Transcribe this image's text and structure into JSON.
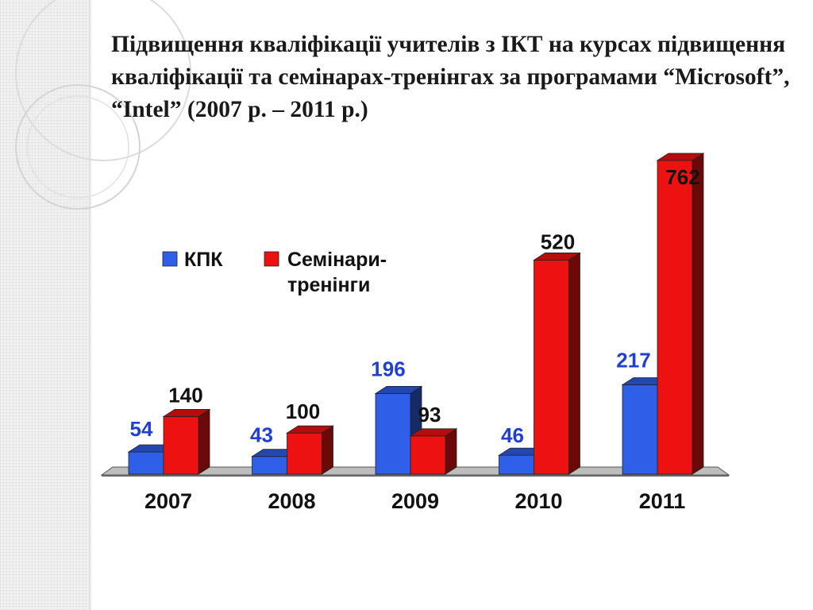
{
  "slide": {
    "title": "Підвищення кваліфікації учителів з ІКТ на курсах підвищення кваліфікації та семінарах-тренінгах за програмами “Microsoft”, “Intel” (2007 р. –  2011 р.)"
  },
  "chart_data": {
    "type": "bar",
    "title": "",
    "xlabel": "",
    "ylabel": "",
    "categories": [
      "2007",
      "2008",
      "2009",
      "2010",
      "2011"
    ],
    "series": [
      {
        "name": "КПК",
        "values": [
          54,
          43,
          196,
          46,
          217
        ],
        "color": "#2f5fe8",
        "label_color": "#1f3fd6"
      },
      {
        "name": "Семінари-тренінги",
        "values": [
          140,
          100,
          93,
          520,
          762
        ],
        "color": "#ee1111",
        "label_color": "#111111"
      }
    ],
    "ylim": [
      0,
      762
    ],
    "grid": false,
    "legend": "top-left",
    "style": "3d"
  }
}
